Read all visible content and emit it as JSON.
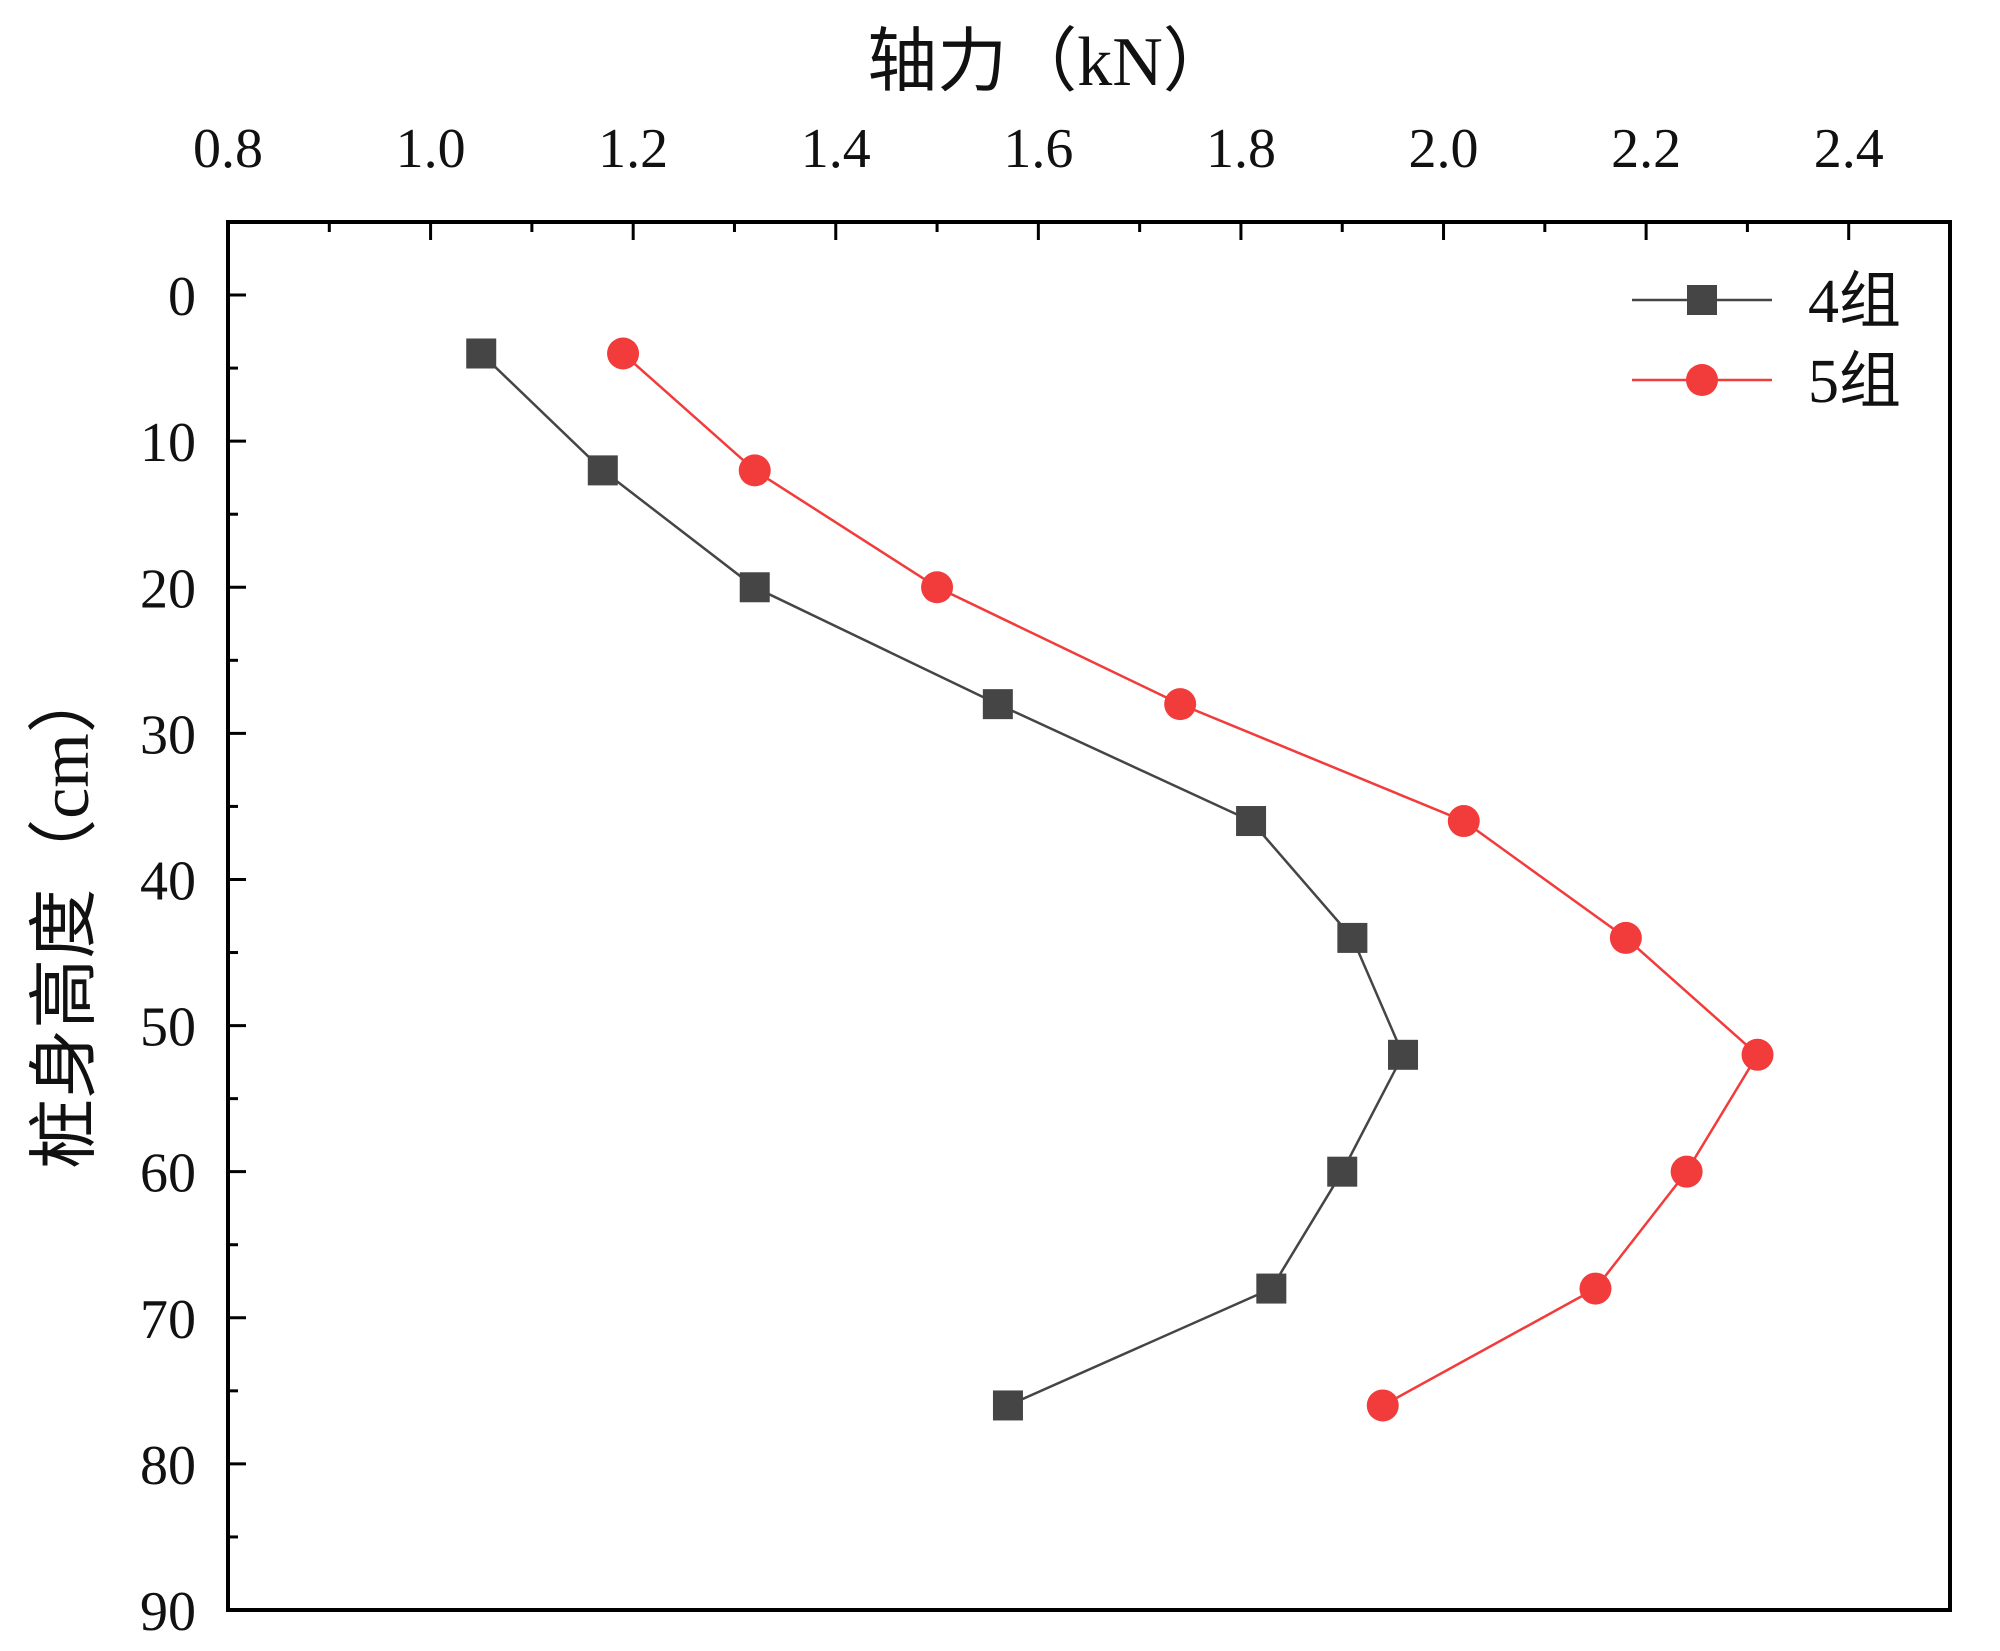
{
  "chart_data": {
    "type": "line",
    "xlabel": "轴力（kN）",
    "ylabel": "桩身高度（cm）",
    "xlim": [
      0.8,
      2.5
    ],
    "ylim": [
      -5,
      90
    ],
    "x_ticks": [
      "0.8",
      "1.0",
      "1.2",
      "1.4",
      "1.6",
      "1.8",
      "2.0",
      "2.2",
      "2.4"
    ],
    "x_tick_values": [
      0.8,
      1.0,
      1.2,
      1.4,
      1.6,
      1.8,
      2.0,
      2.2,
      2.4
    ],
    "y_ticks": [
      "0",
      "10",
      "20",
      "30",
      "40",
      "50",
      "60",
      "70",
      "80",
      "90"
    ],
    "y_tick_values": [
      0,
      10,
      20,
      30,
      40,
      50,
      60,
      70,
      80,
      90
    ],
    "legend_position": "top-right",
    "series": [
      {
        "name": "4组",
        "color": "#454545",
        "marker": "square",
        "points": [
          {
            "x": 1.05,
            "y": 4
          },
          {
            "x": 1.17,
            "y": 12
          },
          {
            "x": 1.32,
            "y": 20
          },
          {
            "x": 1.56,
            "y": 28
          },
          {
            "x": 1.81,
            "y": 36
          },
          {
            "x": 1.91,
            "y": 44
          },
          {
            "x": 1.96,
            "y": 52
          },
          {
            "x": 1.9,
            "y": 60
          },
          {
            "x": 1.83,
            "y": 68
          },
          {
            "x": 1.57,
            "y": 76
          }
        ]
      },
      {
        "name": "5组",
        "color": "#f23b3b",
        "marker": "circle",
        "points": [
          {
            "x": 1.19,
            "y": 4
          },
          {
            "x": 1.32,
            "y": 12
          },
          {
            "x": 1.5,
            "y": 20
          },
          {
            "x": 1.74,
            "y": 28
          },
          {
            "x": 2.02,
            "y": 36
          },
          {
            "x": 2.18,
            "y": 44
          },
          {
            "x": 2.31,
            "y": 52
          },
          {
            "x": 2.24,
            "y": 60
          },
          {
            "x": 2.15,
            "y": 68
          },
          {
            "x": 1.94,
            "y": 76
          }
        ]
      }
    ]
  }
}
